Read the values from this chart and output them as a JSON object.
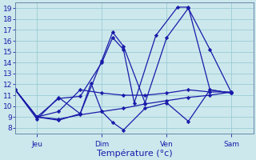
{
  "title": "Température (°c)",
  "bg_color": "#cce8ec",
  "grid_color": "#99ccd4",
  "line_color": "#1a1aaa",
  "marker_color": "#1a1aaa",
  "ylim": [
    7.5,
    19.5
  ],
  "yticks": [
    8,
    9,
    10,
    11,
    12,
    13,
    14,
    15,
    16,
    17,
    18,
    19
  ],
  "xtick_labels": [
    "Jeu",
    "Dim",
    "Ven",
    "Sam"
  ],
  "xtick_positions": [
    1,
    4,
    7,
    10
  ],
  "xlim": [
    0,
    11
  ],
  "lines": [
    {
      "x": [
        0,
        1,
        2,
        3,
        4,
        5,
        6,
        7,
        8,
        9,
        10
      ],
      "y": [
        11.5,
        9.0,
        8.8,
        9.2,
        9.5,
        9.8,
        10.2,
        10.5,
        10.8,
        11.0,
        11.3
      ]
    },
    {
      "x": [
        0,
        1,
        2,
        3,
        3.5,
        4,
        4.5,
        5,
        6,
        7,
        8,
        9,
        10
      ],
      "y": [
        11.5,
        9.0,
        8.7,
        9.3,
        12.1,
        9.5,
        8.5,
        7.8,
        9.8,
        10.3,
        8.6,
        11.5,
        11.2
      ]
    },
    {
      "x": [
        0,
        1,
        2,
        3,
        4,
        4.5,
        5,
        5.5,
        6.5,
        7.5,
        8,
        9,
        10
      ],
      "y": [
        11.5,
        9.0,
        10.7,
        10.9,
        14.0,
        16.3,
        15.2,
        10.3,
        16.5,
        19.1,
        19.1,
        11.5,
        11.2
      ]
    },
    {
      "x": [
        0,
        1,
        2,
        3,
        4,
        4.5,
        5,
        6,
        7,
        8,
        9,
        10
      ],
      "y": [
        11.5,
        8.8,
        10.8,
        9.3,
        14.2,
        16.8,
        15.5,
        10.3,
        16.3,
        19.0,
        15.2,
        11.2
      ]
    },
    {
      "x": [
        0,
        1,
        2,
        3,
        4,
        5,
        6,
        7,
        8,
        9,
        10
      ],
      "y": [
        11.5,
        9.0,
        9.5,
        11.5,
        11.2,
        11.0,
        11.0,
        11.2,
        11.5,
        11.3,
        11.3
      ]
    }
  ],
  "tick_fontsize": 6.5,
  "xlabel_fontsize": 8
}
